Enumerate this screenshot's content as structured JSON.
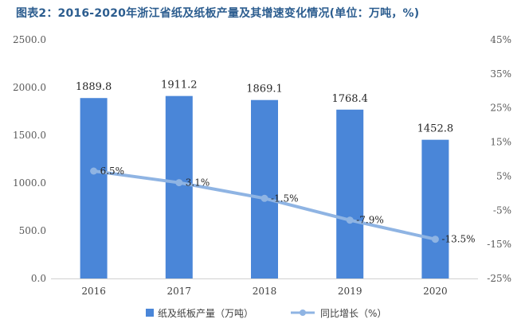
{
  "chart_data": {
    "type": "bar",
    "title": "图表2：2016-2020年浙江省纸及纸板产量及其增速变化情况(单位：万吨，%)",
    "categories": [
      "2016",
      "2017",
      "2018",
      "2019",
      "2020"
    ],
    "series": [
      {
        "name": "纸及纸板产量（万吨）",
        "type": "bar",
        "axis": "left",
        "values": [
          1889.8,
          1911.2,
          1869.1,
          1768.4,
          1452.8
        ],
        "labels": [
          "1889.8",
          "1911.2",
          "1869.1",
          "1768.4",
          "1452.8"
        ]
      },
      {
        "name": "同比增长（%）",
        "type": "line",
        "axis": "right",
        "values": [
          6.5,
          3.1,
          -1.5,
          -7.9,
          -13.5
        ],
        "labels": [
          "6.5%",
          "3.1%",
          "-1.5%",
          "-7.9%",
          "-13.5%"
        ]
      }
    ],
    "y_left": {
      "ylim": [
        0,
        2500
      ],
      "ticks": [
        "0.0",
        "500.0",
        "1000.0",
        "1500.0",
        "2000.0",
        "2500.0"
      ],
      "tick_values": [
        0,
        500,
        1000,
        1500,
        2000,
        2500
      ]
    },
    "y_right": {
      "ylim": [
        -25,
        45
      ],
      "ticks": [
        "-25%",
        "-15%",
        "-5%",
        "5%",
        "15%",
        "25%",
        "35%",
        "45%"
      ],
      "tick_values": [
        -25,
        -15,
        -5,
        5,
        15,
        25,
        35,
        45
      ]
    },
    "grid": false,
    "legend_position": "bottom",
    "colors": {
      "bar": "#4a86d8",
      "line": "#8fb4e3",
      "title": "#2c5d8f",
      "axis": "#d0d0d0"
    }
  }
}
